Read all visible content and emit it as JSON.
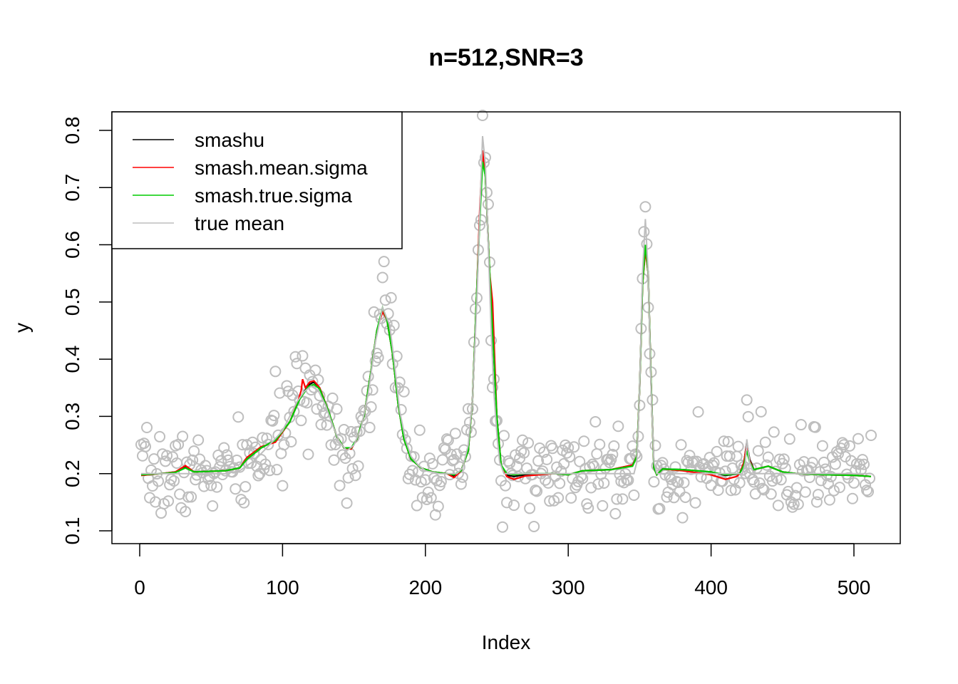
{
  "chart_data": {
    "type": "scatter",
    "title": "n=512,SNR=3",
    "xlabel": "Index",
    "ylabel": "y",
    "xlim": [
      0,
      512
    ],
    "ylim": [
      0.1,
      0.8
    ],
    "x_ticks": [
      0,
      100,
      200,
      300,
      400,
      500
    ],
    "x_tick_labels": [
      "0",
      "100",
      "200",
      "300",
      "400",
      "500"
    ],
    "y_ticks": [
      0.1,
      0.2,
      0.3,
      0.4,
      0.5,
      0.6,
      0.7,
      0.8
    ],
    "y_tick_labels": [
      "0.1",
      "0.2",
      "0.3",
      "0.4",
      "0.5",
      "0.6",
      "0.7",
      "0.8"
    ],
    "grid": false,
    "legend_position": "top-left",
    "legend": [
      {
        "label": "smashu",
        "color": "#000000"
      },
      {
        "label": "smash.mean.sigma",
        "color": "#ff0000"
      },
      {
        "label": "smash.true.sigma",
        "color": "#00cc00"
      },
      {
        "label": "true mean",
        "color": "#bebebe"
      }
    ],
    "observations": {
      "n": 512,
      "color": "#bebebe",
      "noise_sd": 0.035,
      "seed": 7,
      "note_generated_around": "true mean"
    },
    "series": [
      {
        "name": "true mean",
        "color": "#bebebe",
        "points": [
          [
            1,
            0.2
          ],
          [
            60,
            0.2
          ],
          [
            70,
            0.205
          ],
          [
            80,
            0.222
          ],
          [
            90,
            0.248
          ],
          [
            100,
            0.275
          ],
          [
            105,
            0.3
          ],
          [
            110,
            0.325
          ],
          [
            115,
            0.343
          ],
          [
            120,
            0.353
          ],
          [
            125,
            0.345
          ],
          [
            130,
            0.32
          ],
          [
            135,
            0.285
          ],
          [
            140,
            0.255
          ],
          [
            145,
            0.24
          ],
          [
            150,
            0.25
          ],
          [
            155,
            0.28
          ],
          [
            160,
            0.34
          ],
          [
            165,
            0.43
          ],
          [
            170,
            0.49
          ],
          [
            175,
            0.46
          ],
          [
            178,
            0.4
          ],
          [
            182,
            0.31
          ],
          [
            186,
            0.26
          ],
          [
            190,
            0.23
          ],
          [
            195,
            0.215
          ],
          [
            200,
            0.205
          ],
          [
            210,
            0.2
          ],
          [
            222,
            0.2
          ],
          [
            226,
            0.21
          ],
          [
            230,
            0.25
          ],
          [
            233,
            0.33
          ],
          [
            236,
            0.5
          ],
          [
            238,
            0.65
          ],
          [
            240,
            0.79
          ],
          [
            242,
            0.74
          ],
          [
            244,
            0.6
          ],
          [
            246,
            0.45
          ],
          [
            248,
            0.34
          ],
          [
            250,
            0.27
          ],
          [
            252,
            0.22
          ],
          [
            255,
            0.2
          ],
          [
            346,
            0.2
          ],
          [
            348,
            0.22
          ],
          [
            350,
            0.35
          ],
          [
            352,
            0.55
          ],
          [
            354,
            0.645
          ],
          [
            356,
            0.55
          ],
          [
            358,
            0.35
          ],
          [
            360,
            0.22
          ],
          [
            362,
            0.2
          ],
          [
            422,
            0.2
          ],
          [
            424,
            0.22
          ],
          [
            425,
            0.26
          ],
          [
            427,
            0.22
          ],
          [
            430,
            0.2
          ],
          [
            512,
            0.2
          ]
        ]
      },
      {
        "name": "smashu",
        "color": "#000000",
        "points": [
          [
            1,
            0.197
          ],
          [
            15,
            0.2
          ],
          [
            25,
            0.203
          ],
          [
            32,
            0.212
          ],
          [
            38,
            0.203
          ],
          [
            60,
            0.205
          ],
          [
            70,
            0.21
          ],
          [
            75,
            0.225
          ],
          [
            85,
            0.245
          ],
          [
            95,
            0.258
          ],
          [
            105,
            0.29
          ],
          [
            112,
            0.33
          ],
          [
            118,
            0.355
          ],
          [
            122,
            0.36
          ],
          [
            126,
            0.35
          ],
          [
            132,
            0.31
          ],
          [
            138,
            0.265
          ],
          [
            143,
            0.245
          ],
          [
            148,
            0.243
          ],
          [
            152,
            0.26
          ],
          [
            157,
            0.3
          ],
          [
            162,
            0.38
          ],
          [
            166,
            0.45
          ],
          [
            170,
            0.485
          ],
          [
            173,
            0.47
          ],
          [
            177,
            0.41
          ],
          [
            181,
            0.32
          ],
          [
            185,
            0.26
          ],
          [
            190,
            0.225
          ],
          [
            197,
            0.21
          ],
          [
            205,
            0.203
          ],
          [
            215,
            0.2
          ],
          [
            220,
            0.195
          ],
          [
            225,
            0.205
          ],
          [
            230,
            0.24
          ],
          [
            233,
            0.33
          ],
          [
            236,
            0.52
          ],
          [
            238,
            0.65
          ],
          [
            240,
            0.755
          ],
          [
            242,
            0.72
          ],
          [
            245,
            0.55
          ],
          [
            247,
            0.45
          ],
          [
            250,
            0.3
          ],
          [
            253,
            0.215
          ],
          [
            257,
            0.197
          ],
          [
            262,
            0.195
          ],
          [
            270,
            0.198
          ],
          [
            290,
            0.2
          ],
          [
            300,
            0.198
          ],
          [
            310,
            0.205
          ],
          [
            330,
            0.207
          ],
          [
            345,
            0.215
          ],
          [
            348,
            0.23
          ],
          [
            350,
            0.35
          ],
          [
            352,
            0.53
          ],
          [
            354,
            0.595
          ],
          [
            356,
            0.55
          ],
          [
            358,
            0.36
          ],
          [
            360,
            0.21
          ],
          [
            362,
            0.198
          ],
          [
            366,
            0.208
          ],
          [
            380,
            0.207
          ],
          [
            400,
            0.203
          ],
          [
            410,
            0.197
          ],
          [
            420,
            0.2
          ],
          [
            423,
            0.22
          ],
          [
            425,
            0.255
          ],
          [
            427,
            0.225
          ],
          [
            430,
            0.207
          ],
          [
            440,
            0.213
          ],
          [
            450,
            0.203
          ],
          [
            460,
            0.2
          ],
          [
            480,
            0.198
          ],
          [
            500,
            0.197
          ],
          [
            512,
            0.195
          ]
        ]
      },
      {
        "name": "smash.mean.sigma",
        "color": "#ff0000",
        "points": [
          [
            1,
            0.197
          ],
          [
            15,
            0.2
          ],
          [
            25,
            0.203
          ],
          [
            32,
            0.214
          ],
          [
            38,
            0.203
          ],
          [
            60,
            0.205
          ],
          [
            70,
            0.21
          ],
          [
            75,
            0.228
          ],
          [
            85,
            0.247
          ],
          [
            95,
            0.255
          ],
          [
            105,
            0.29
          ],
          [
            110,
            0.32
          ],
          [
            113,
            0.345
          ],
          [
            114,
            0.365
          ],
          [
            116,
            0.35
          ],
          [
            119,
            0.36
          ],
          [
            122,
            0.362
          ],
          [
            126,
            0.35
          ],
          [
            132,
            0.31
          ],
          [
            138,
            0.265
          ],
          [
            143,
            0.245
          ],
          [
            148,
            0.243
          ],
          [
            152,
            0.26
          ],
          [
            157,
            0.3
          ],
          [
            162,
            0.38
          ],
          [
            166,
            0.45
          ],
          [
            170,
            0.483
          ],
          [
            173,
            0.47
          ],
          [
            177,
            0.41
          ],
          [
            181,
            0.32
          ],
          [
            185,
            0.26
          ],
          [
            190,
            0.225
          ],
          [
            197,
            0.21
          ],
          [
            205,
            0.203
          ],
          [
            215,
            0.2
          ],
          [
            220,
            0.193
          ],
          [
            225,
            0.205
          ],
          [
            230,
            0.24
          ],
          [
            233,
            0.33
          ],
          [
            236,
            0.52
          ],
          [
            238,
            0.66
          ],
          [
            240,
            0.765
          ],
          [
            242,
            0.72
          ],
          [
            245,
            0.55
          ],
          [
            247,
            0.5
          ],
          [
            250,
            0.3
          ],
          [
            253,
            0.215
          ],
          [
            257,
            0.195
          ],
          [
            262,
            0.19
          ],
          [
            270,
            0.196
          ],
          [
            290,
            0.2
          ],
          [
            300,
            0.198
          ],
          [
            310,
            0.205
          ],
          [
            330,
            0.207
          ],
          [
            345,
            0.215
          ],
          [
            348,
            0.23
          ],
          [
            350,
            0.35
          ],
          [
            352,
            0.53
          ],
          [
            354,
            0.59
          ],
          [
            356,
            0.55
          ],
          [
            358,
            0.36
          ],
          [
            360,
            0.21
          ],
          [
            362,
            0.198
          ],
          [
            366,
            0.208
          ],
          [
            380,
            0.205
          ],
          [
            400,
            0.198
          ],
          [
            410,
            0.19
          ],
          [
            418,
            0.195
          ],
          [
            420,
            0.2
          ],
          [
            423,
            0.22
          ],
          [
            425,
            0.252
          ],
          [
            427,
            0.222
          ],
          [
            430,
            0.207
          ],
          [
            440,
            0.213
          ],
          [
            450,
            0.203
          ],
          [
            460,
            0.2
          ],
          [
            480,
            0.198
          ],
          [
            500,
            0.197
          ],
          [
            512,
            0.195
          ]
        ]
      },
      {
        "name": "smash.true.sigma",
        "color": "#00cc00",
        "points": [
          [
            1,
            0.198
          ],
          [
            15,
            0.2
          ],
          [
            25,
            0.202
          ],
          [
            32,
            0.21
          ],
          [
            38,
            0.203
          ],
          [
            60,
            0.205
          ],
          [
            70,
            0.21
          ],
          [
            75,
            0.225
          ],
          [
            85,
            0.245
          ],
          [
            95,
            0.258
          ],
          [
            105,
            0.29
          ],
          [
            112,
            0.33
          ],
          [
            118,
            0.352
          ],
          [
            122,
            0.356
          ],
          [
            126,
            0.348
          ],
          [
            132,
            0.31
          ],
          [
            138,
            0.265
          ],
          [
            143,
            0.245
          ],
          [
            148,
            0.245
          ],
          [
            152,
            0.26
          ],
          [
            157,
            0.3
          ],
          [
            162,
            0.38
          ],
          [
            166,
            0.45
          ],
          [
            170,
            0.49
          ],
          [
            173,
            0.47
          ],
          [
            177,
            0.41
          ],
          [
            181,
            0.32
          ],
          [
            185,
            0.26
          ],
          [
            190,
            0.225
          ],
          [
            197,
            0.21
          ],
          [
            205,
            0.203
          ],
          [
            215,
            0.2
          ],
          [
            220,
            0.198
          ],
          [
            225,
            0.205
          ],
          [
            230,
            0.24
          ],
          [
            233,
            0.33
          ],
          [
            236,
            0.52
          ],
          [
            238,
            0.64
          ],
          [
            240,
            0.745
          ],
          [
            242,
            0.72
          ],
          [
            245,
            0.55
          ],
          [
            247,
            0.45
          ],
          [
            250,
            0.3
          ],
          [
            253,
            0.215
          ],
          [
            257,
            0.2
          ],
          [
            262,
            0.198
          ],
          [
            270,
            0.2
          ],
          [
            290,
            0.2
          ],
          [
            300,
            0.198
          ],
          [
            310,
            0.205
          ],
          [
            330,
            0.207
          ],
          [
            345,
            0.213
          ],
          [
            348,
            0.23
          ],
          [
            350,
            0.35
          ],
          [
            352,
            0.53
          ],
          [
            354,
            0.6
          ],
          [
            356,
            0.55
          ],
          [
            358,
            0.36
          ],
          [
            360,
            0.21
          ],
          [
            362,
            0.198
          ],
          [
            366,
            0.208
          ],
          [
            380,
            0.207
          ],
          [
            400,
            0.203
          ],
          [
            410,
            0.198
          ],
          [
            420,
            0.2
          ],
          [
            423,
            0.215
          ],
          [
            425,
            0.24
          ],
          [
            427,
            0.22
          ],
          [
            430,
            0.207
          ],
          [
            440,
            0.213
          ],
          [
            450,
            0.203
          ],
          [
            460,
            0.2
          ],
          [
            480,
            0.198
          ],
          [
            500,
            0.197
          ],
          [
            512,
            0.195
          ]
        ]
      }
    ]
  }
}
